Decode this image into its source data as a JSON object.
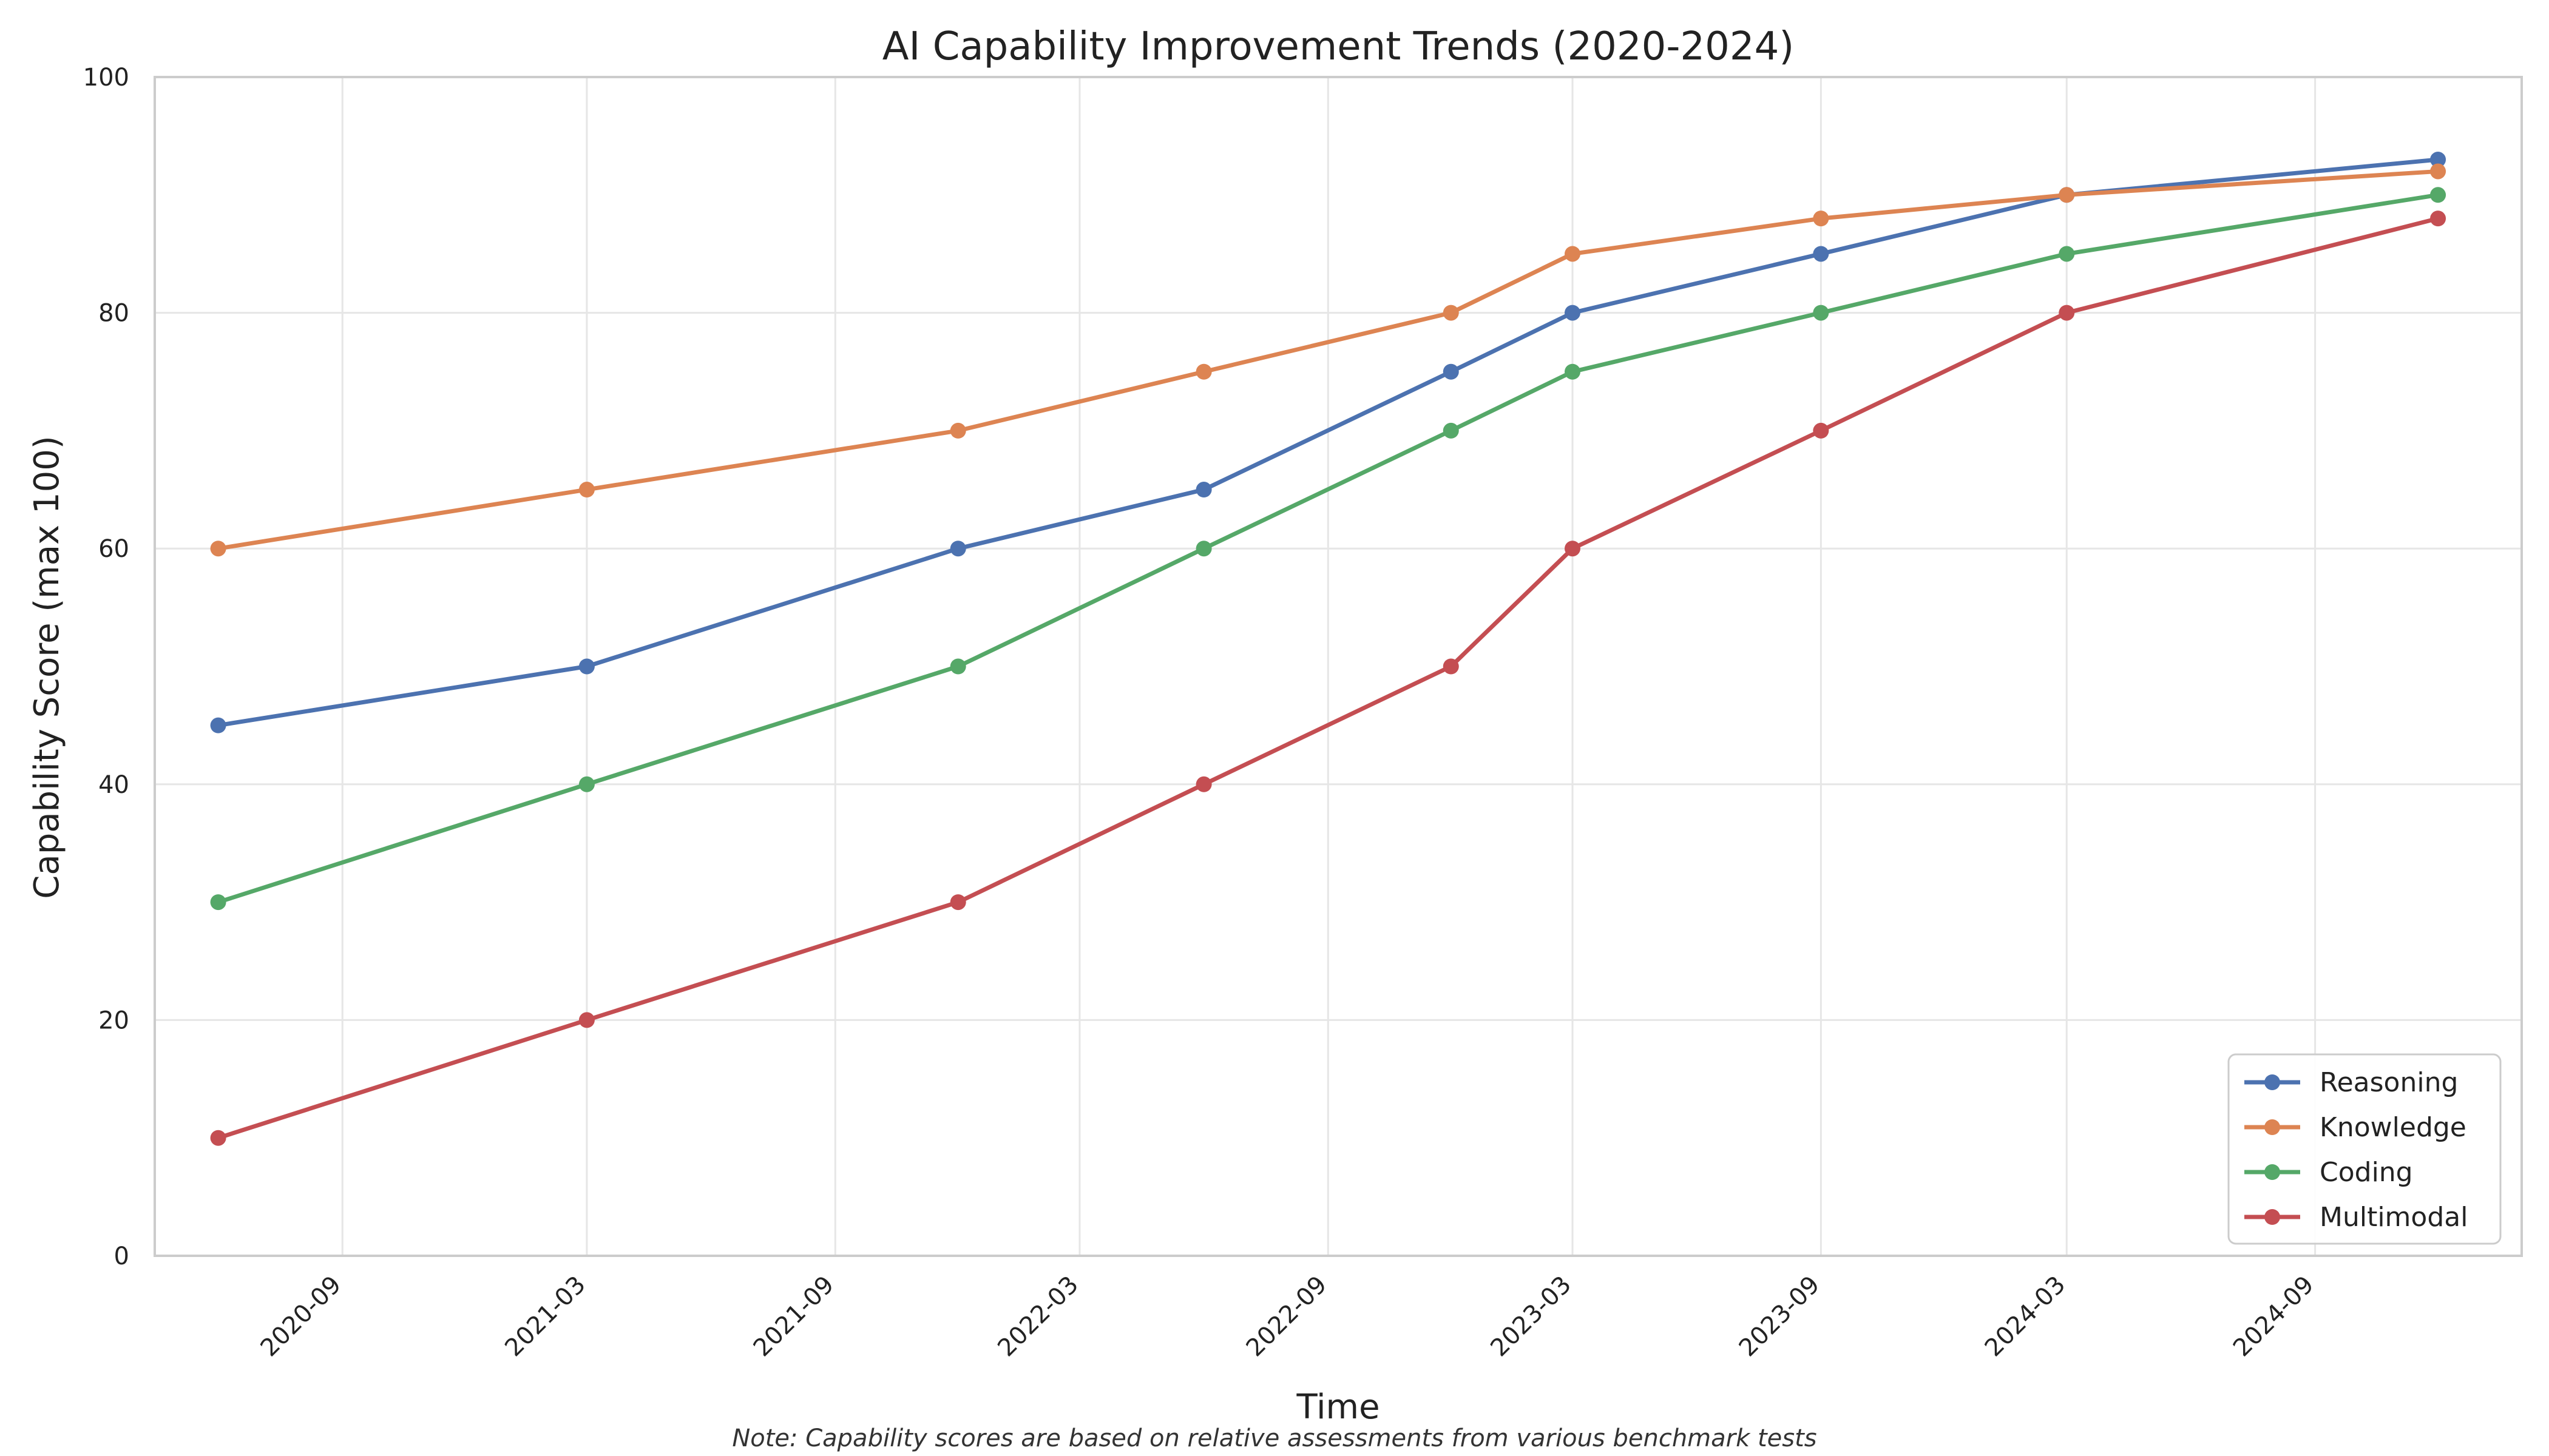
{
  "chart_data": {
    "type": "line",
    "title": "AI Capability Improvement Trends (2020-2024)",
    "xlabel": "Time",
    "ylabel": "Capability Score (max 100)",
    "note": "Note: Capability scores are based on relative assessments from various benchmark tests",
    "x_type": "date",
    "x": [
      "2020-06",
      "2021-03",
      "2021-12",
      "2022-06",
      "2022-12",
      "2023-03",
      "2023-09",
      "2024-03",
      "2024-12"
    ],
    "xlim": [
      "2020-04-15",
      "2025-02-01"
    ],
    "xticks": [
      "2020-09",
      "2021-03",
      "2021-09",
      "2022-03",
      "2022-09",
      "2023-03",
      "2023-09",
      "2024-03",
      "2024-09"
    ],
    "ylim": [
      0,
      100
    ],
    "yticks": [
      0,
      20,
      40,
      60,
      80,
      100
    ],
    "grid": true,
    "legend_position": "lower-right",
    "series": [
      {
        "name": "Reasoning",
        "color": "#4C72B0",
        "values": [
          45,
          50,
          60,
          65,
          75,
          80,
          85,
          90,
          93
        ]
      },
      {
        "name": "Knowledge",
        "color": "#DD8452",
        "values": [
          60,
          65,
          70,
          75,
          80,
          85,
          88,
          90,
          92
        ]
      },
      {
        "name": "Coding",
        "color": "#55A868",
        "values": [
          30,
          40,
          50,
          60,
          70,
          75,
          80,
          85,
          90
        ]
      },
      {
        "name": "Multimodal",
        "color": "#C44E52",
        "values": [
          10,
          20,
          30,
          40,
          50,
          60,
          70,
          80,
          88
        ]
      }
    ]
  }
}
